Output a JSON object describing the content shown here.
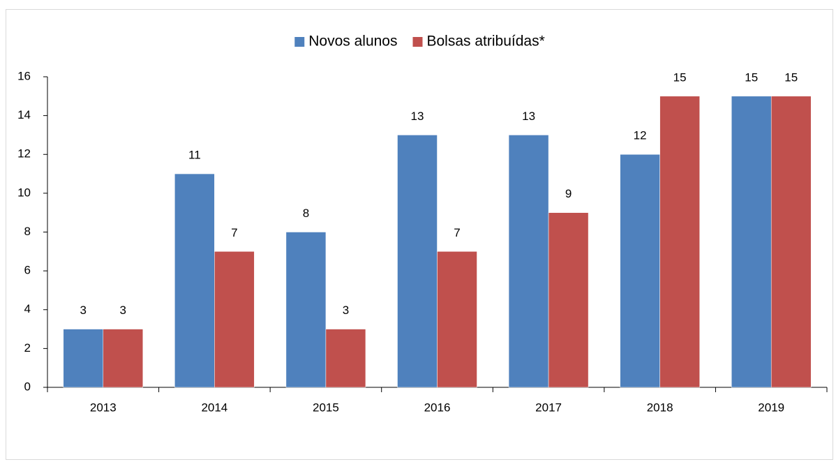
{
  "chart_data": {
    "type": "bar",
    "categories": [
      "2013",
      "2014",
      "2015",
      "2016",
      "2017",
      "2018",
      "2019"
    ],
    "series": [
      {
        "name": "Novos alunos",
        "color": "#4f81bd",
        "values": [
          3,
          11,
          8,
          13,
          13,
          12,
          15
        ]
      },
      {
        "name": "Bolsas atribuídas*",
        "color": "#c0504d",
        "values": [
          3,
          7,
          3,
          7,
          9,
          15,
          15
        ]
      }
    ],
    "ylim": [
      0,
      16
    ],
    "yticks": [
      0,
      2,
      4,
      6,
      8,
      10,
      12,
      14,
      16
    ],
    "legend": "top",
    "grid": false
  }
}
